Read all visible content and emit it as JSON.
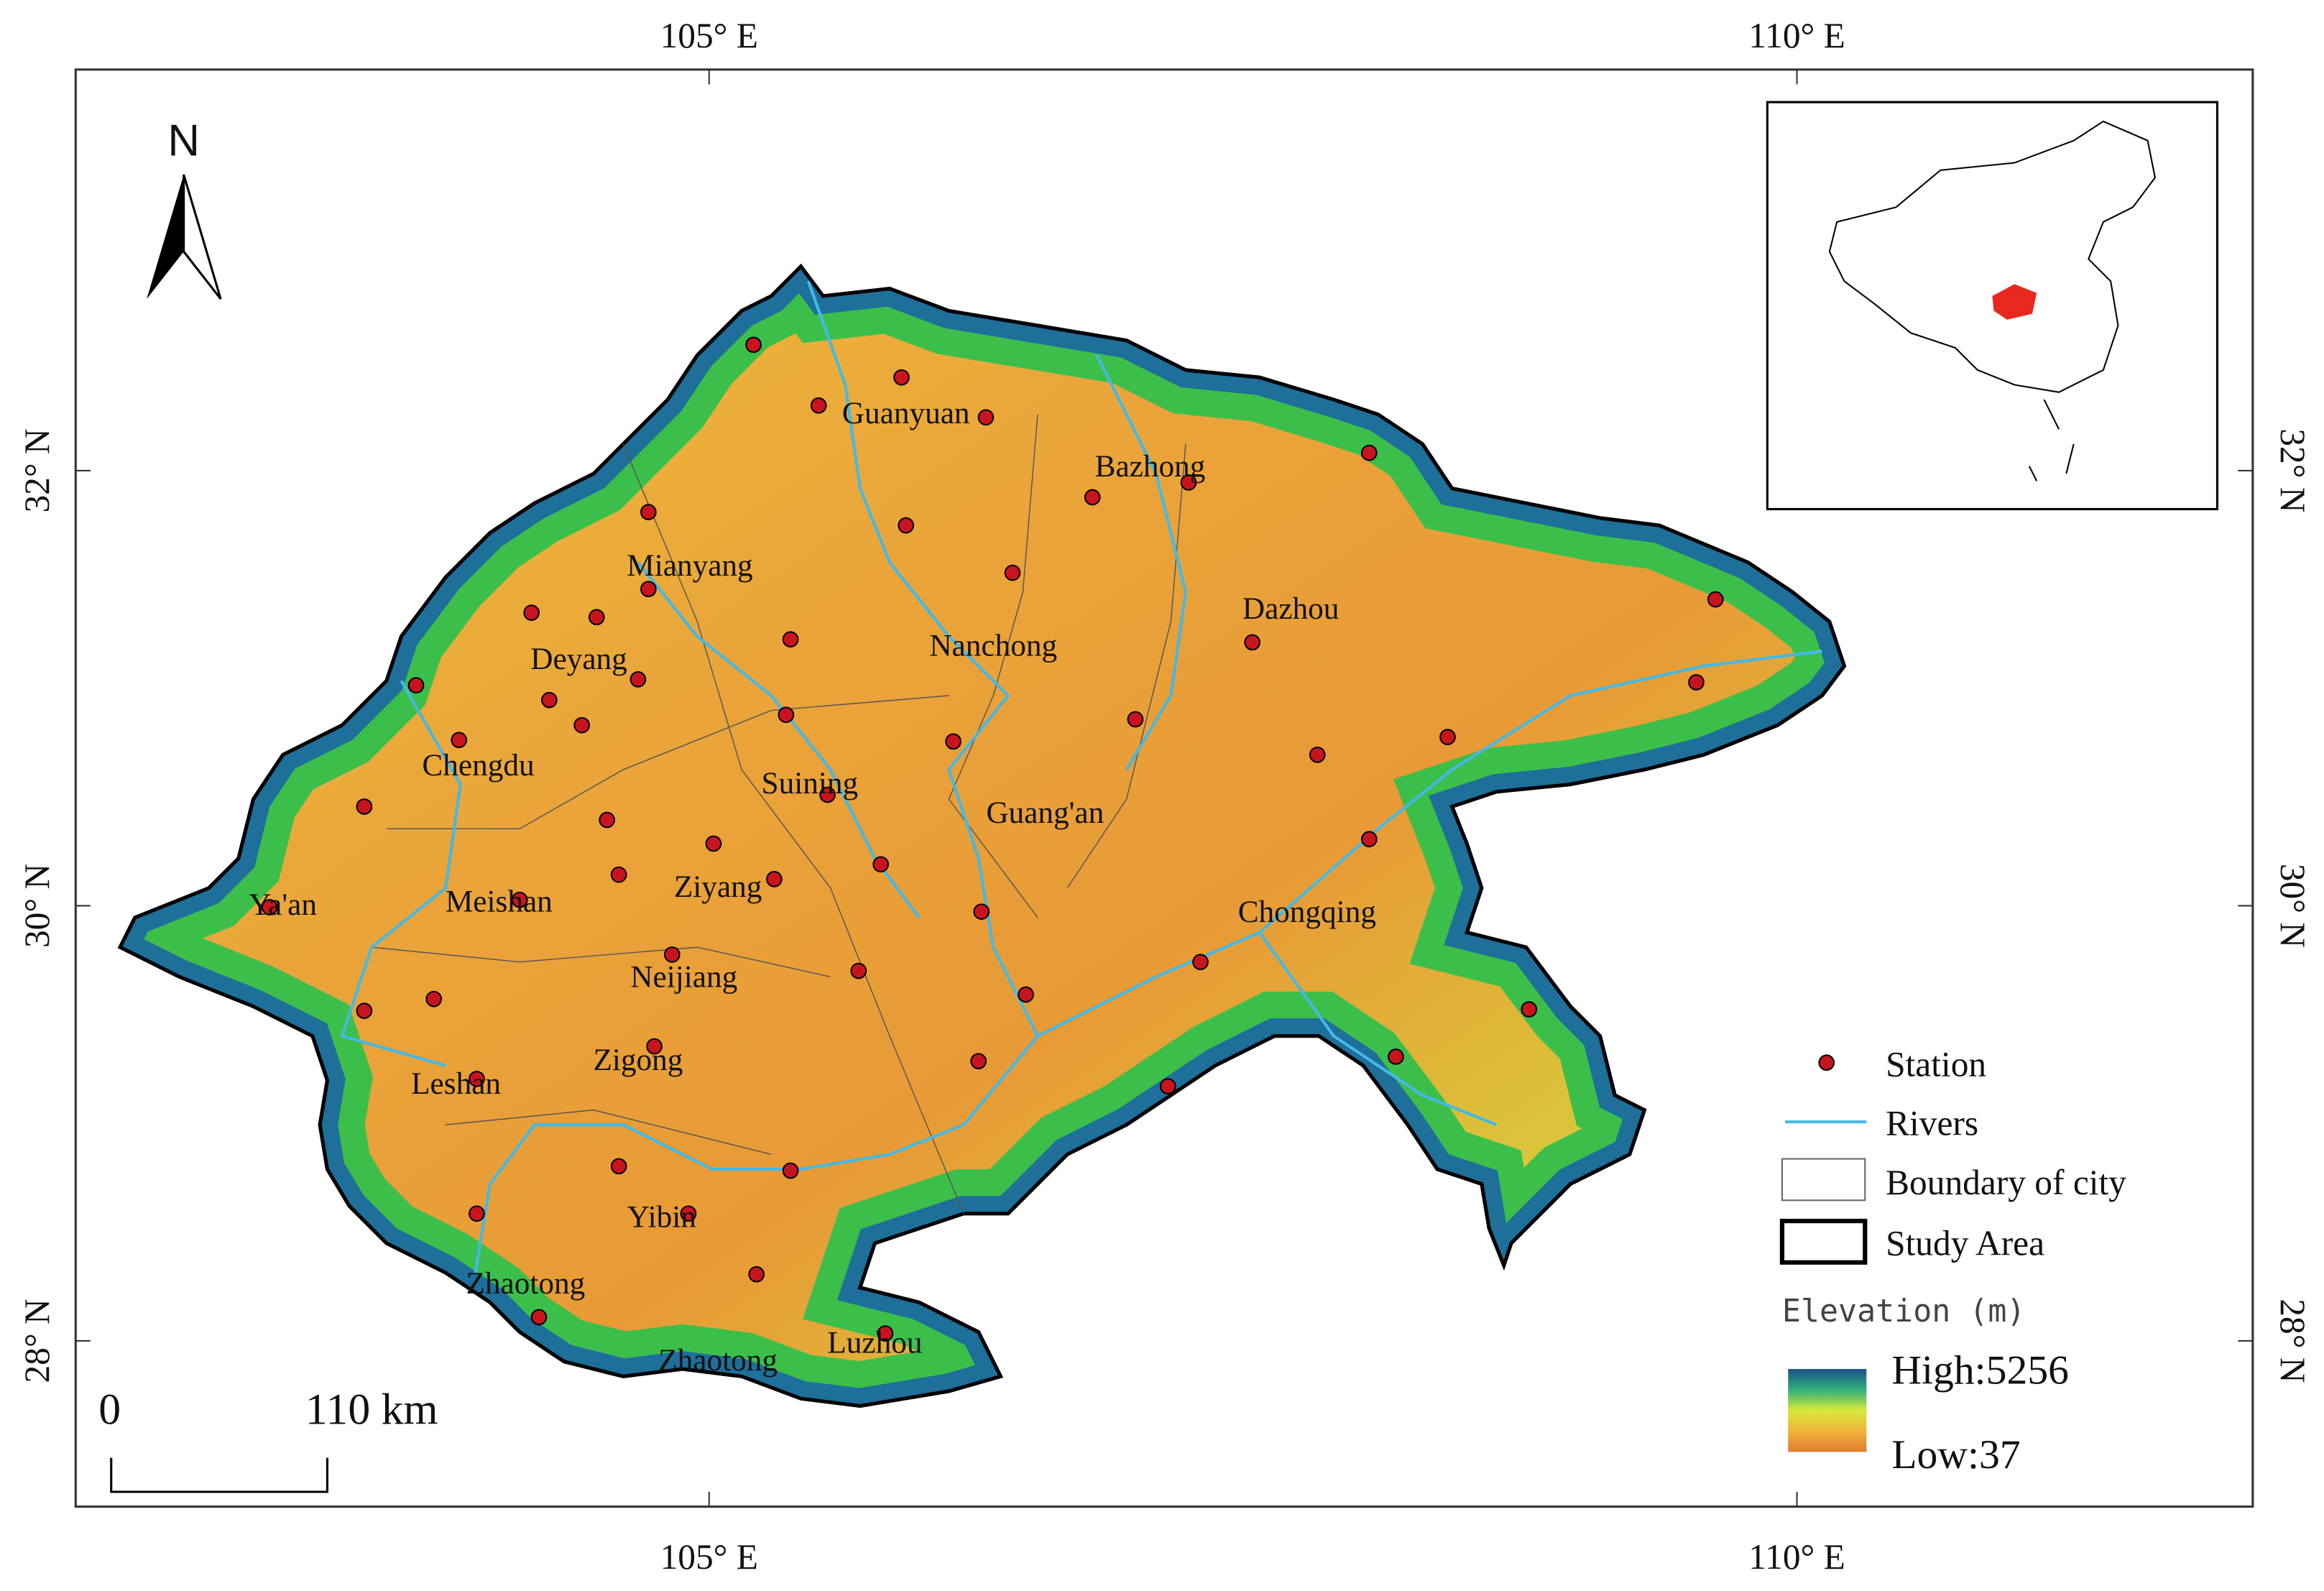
{
  "north": "N",
  "scale_bar": {
    "start": "0",
    "end": "110 km"
  },
  "graticule": {
    "top": [
      "105° E",
      "110° E"
    ],
    "bottom": [
      "105° E",
      "110° E"
    ],
    "left": [
      "32° N",
      "30° N",
      "28° N"
    ],
    "right": [
      "32° N",
      "30° N",
      "28° N"
    ]
  },
  "cities": [
    "Guanyuan",
    "Bazhong",
    "Mianyang",
    "Dazhou",
    "Deyang",
    "Nanchong",
    "Chengdu",
    "Suining",
    "Guang'an",
    "Ziyang",
    "Meishan",
    "Ya'an",
    "Chongqing",
    "Neijiang",
    "Zigong",
    "Leshan",
    "Yibin",
    "Zhaotong",
    "Zhaotong",
    "Luzhou"
  ],
  "legend": {
    "station": "Station",
    "rivers": "Rivers",
    "boundary": "Boundary of city",
    "study_area": "Study Area",
    "elevation_title": "Elevation (m)",
    "high": "High:5256",
    "low": "Low:37"
  }
}
